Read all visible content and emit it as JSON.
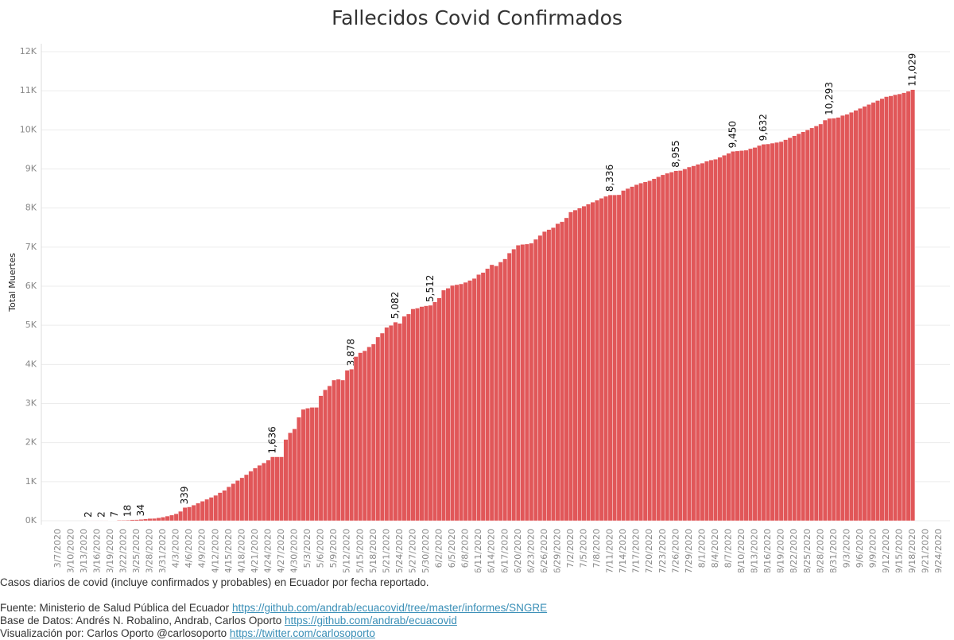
{
  "chart_data": {
    "type": "bar",
    "title": "Fallecidos Covid Confirmados",
    "y_label": "Total Muertes",
    "color": "#e15759",
    "grid": true,
    "ylim": [
      0,
      12000
    ],
    "yticks": [
      {
        "value": 0,
        "label": "0K"
      },
      {
        "value": 1000,
        "label": "1K"
      },
      {
        "value": 2000,
        "label": "2K"
      },
      {
        "value": 3000,
        "label": "3K"
      },
      {
        "value": 4000,
        "label": "4K"
      },
      {
        "value": 5000,
        "label": "5K"
      },
      {
        "value": 6000,
        "label": "6K"
      },
      {
        "value": 7000,
        "label": "7K"
      },
      {
        "value": 8000,
        "label": "8K"
      },
      {
        "value": 9000,
        "label": "9K"
      },
      {
        "value": 10000,
        "label": "10K"
      },
      {
        "value": 11000,
        "label": "11K"
      },
      {
        "value": 12000,
        "label": "12K"
      }
    ],
    "categories": [
      "3/7/2020",
      null,
      null,
      "3/10/2020",
      null,
      null,
      "3/13/2020",
      null,
      null,
      "3/16/2020",
      null,
      null,
      "3/19/2020",
      null,
      null,
      "3/22/2020",
      null,
      null,
      "3/25/2020",
      null,
      null,
      "3/28/2020",
      null,
      null,
      "3/31/2020",
      null,
      null,
      "4/3/2020",
      null,
      null,
      "4/6/2020",
      null,
      null,
      "4/9/2020",
      null,
      null,
      "4/12/2020",
      null,
      null,
      "4/15/2020",
      null,
      null,
      "4/18/2020",
      null,
      null,
      "4/21/2020",
      null,
      null,
      "4/24/2020",
      null,
      null,
      "4/27/2020",
      null,
      null,
      "4/30/2020",
      null,
      null,
      "5/3/2020",
      null,
      null,
      "5/6/2020",
      null,
      null,
      "5/9/2020",
      null,
      null,
      "5/12/2020",
      null,
      null,
      "5/15/2020",
      null,
      null,
      "5/18/2020",
      null,
      null,
      "5/21/2020",
      null,
      null,
      "5/24/2020",
      null,
      null,
      "5/27/2020",
      null,
      null,
      "5/30/2020",
      null,
      null,
      "6/2/2020",
      null,
      null,
      "6/5/2020",
      null,
      null,
      "6/8/2020",
      null,
      null,
      "6/11/2020",
      null,
      null,
      "6/14/2020",
      null,
      null,
      "6/17/2020",
      null,
      null,
      "6/20/2020",
      null,
      null,
      "6/23/2020",
      null,
      null,
      "6/26/2020",
      null,
      null,
      "6/29/2020",
      null,
      null,
      "7/2/2020",
      null,
      null,
      "7/5/2020",
      null,
      null,
      "7/8/2020",
      null,
      null,
      "7/11/2020",
      null,
      null,
      "7/14/2020",
      null,
      null,
      "7/17/2020",
      null,
      null,
      "7/20/2020",
      null,
      null,
      "7/23/2020",
      null,
      null,
      "7/26/2020",
      null,
      null,
      "7/29/2020",
      null,
      null,
      "8/1/2020",
      null,
      null,
      "8/4/2020",
      null,
      null,
      "8/7/2020",
      null,
      null,
      "8/10/2020",
      null,
      null,
      "8/13/2020",
      null,
      null,
      "8/16/2020",
      null,
      null,
      "8/19/2020",
      null,
      null,
      "8/22/2020",
      null,
      null,
      "8/25/2020",
      null,
      null,
      "8/28/2020",
      null,
      null,
      "8/31/2020",
      null,
      null,
      "9/3/2020",
      null,
      null,
      "9/6/2020",
      null,
      null,
      "9/9/2020",
      null,
      null,
      "9/12/2020",
      null,
      null,
      "9/15/2020",
      null,
      null,
      "9/18/2020",
      null,
      null,
      "9/21/2020",
      null,
      null,
      "9/24/2020",
      null,
      null
    ],
    "values": [
      null,
      null,
      null,
      null,
      null,
      null,
      null,
      2,
      2,
      2,
      2,
      3,
      5,
      7,
      14,
      14,
      18,
      27,
      28,
      34,
      48,
      58,
      60,
      75,
      93,
      120,
      145,
      180,
      242,
      339,
      355,
      400,
      450,
      500,
      550,
      600,
      650,
      720,
      780,
      870,
      950,
      1030,
      1100,
      1180,
      1270,
      1350,
      1420,
      1480,
      1550,
      1636,
      1636,
      1636,
      2080,
      2250,
      2350,
      2650,
      2850,
      2880,
      2900,
      2900,
      3200,
      3350,
      3450,
      3600,
      3620,
      3600,
      3850,
      3878,
      4200,
      4300,
      4350,
      4450,
      4520,
      4700,
      4800,
      4950,
      5000,
      5082,
      5050,
      5230,
      5290,
      5420,
      5440,
      5480,
      5500,
      5512,
      5600,
      5700,
      5900,
      5950,
      6020,
      6040,
      6060,
      6100,
      6150,
      6200,
      6300,
      6350,
      6450,
      6550,
      6520,
      6620,
      6700,
      6850,
      6950,
      7050,
      7070,
      7080,
      7100,
      7200,
      7300,
      7400,
      7450,
      7500,
      7600,
      7650,
      7750,
      7900,
      7950,
      8000,
      8050,
      8100,
      8150,
      8200,
      8250,
      8300,
      8336,
      8336,
      8340,
      8450,
      8500,
      8550,
      8600,
      8640,
      8670,
      8700,
      8750,
      8800,
      8850,
      8890,
      8920,
      8955,
      8960,
      9000,
      9050,
      9080,
      9120,
      9150,
      9200,
      9230,
      9250,
      9300,
      9350,
      9400,
      9450,
      9460,
      9470,
      9480,
      9520,
      9550,
      9600,
      9632,
      9640,
      9660,
      9680,
      9700,
      9750,
      9800,
      9850,
      9900,
      9950,
      10000,
      10050,
      10100,
      10150,
      10250,
      10293,
      10300,
      10320,
      10370,
      10400,
      10450,
      10500,
      10550,
      10600,
      10650,
      10700,
      10750,
      10800,
      10850,
      10870,
      10900,
      10920,
      10950,
      10990,
      11029,
      null,
      null,
      null,
      null,
      null,
      null,
      null,
      null
    ],
    "value_labels": [
      null,
      null,
      null,
      null,
      null,
      null,
      null,
      "2",
      null,
      null,
      "2",
      null,
      null,
      "7",
      null,
      null,
      "18",
      null,
      null,
      "34",
      null,
      null,
      null,
      null,
      null,
      null,
      null,
      null,
      null,
      "339",
      null,
      null,
      null,
      null,
      null,
      null,
      null,
      null,
      null,
      null,
      null,
      null,
      null,
      null,
      null,
      null,
      null,
      null,
      null,
      "1,636",
      null,
      null,
      null,
      null,
      null,
      null,
      null,
      null,
      null,
      null,
      null,
      null,
      null,
      null,
      null,
      null,
      null,
      "3,878",
      null,
      null,
      null,
      null,
      null,
      null,
      null,
      null,
      null,
      "5,082",
      null,
      null,
      null,
      null,
      null,
      null,
      null,
      "5,512",
      null,
      null,
      null,
      null,
      null,
      null,
      null,
      null,
      null,
      null,
      null,
      null,
      null,
      null,
      null,
      null,
      null,
      null,
      null,
      null,
      null,
      null,
      null,
      null,
      null,
      null,
      null,
      null,
      null,
      null,
      null,
      null,
      null,
      null,
      null,
      null,
      null,
      null,
      null,
      null,
      "8,336",
      null,
      null,
      null,
      null,
      null,
      null,
      null,
      null,
      null,
      null,
      null,
      null,
      null,
      null,
      "8,955",
      null,
      null,
      null,
      null,
      null,
      null,
      null,
      null,
      null,
      null,
      null,
      null,
      "9,450",
      null,
      null,
      null,
      null,
      null,
      null,
      "9,632",
      null,
      null,
      null,
      null,
      null,
      null,
      null,
      null,
      null,
      null,
      null,
      null,
      null,
      null,
      "10,293",
      null,
      null,
      null,
      null,
      null,
      null,
      null,
      null,
      null,
      null,
      null,
      null,
      null,
      null,
      null,
      null,
      null,
      null,
      "11,029",
      null,
      null,
      null,
      null,
      null,
      null,
      null,
      null
    ]
  },
  "notes": {
    "caption": "Casos diarios de covid (incluye confirmados y probables) en Ecuador por fecha reportado.",
    "source_text": "Fuente: Ministerio de Salud Pública del Ecuador",
    "source_link": "https://github.com/andrab/ecuacovid/tree/master/informes/SNGRE",
    "database_text": "Base de Datos: Andrés N. Robalino, Andrab, Carlos Oporto",
    "database_link": "https://github.com/andrab/ecuacovid",
    "viz_text": "Visualización por: Carlos Oporto @carlosoporto",
    "viz_link": "https://twitter.com/carlosoporto"
  }
}
